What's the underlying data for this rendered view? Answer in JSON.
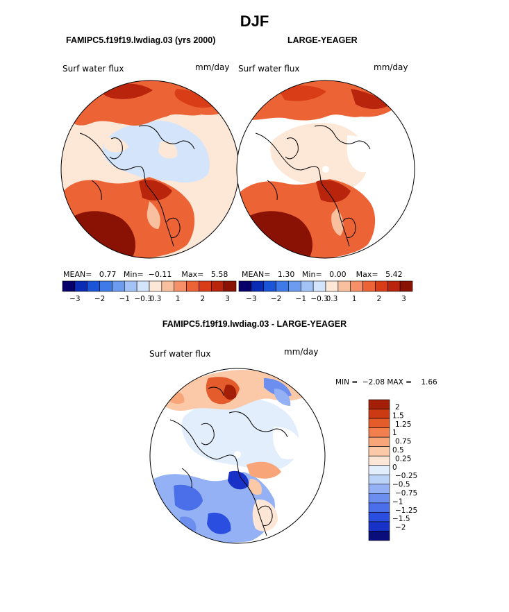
{
  "page": {
    "title": "DJF"
  },
  "panels": [
    {
      "case_title": "FAMIPC5.f19f19.lwdiag.03 (yrs 2000)",
      "variable": "Surf water flux",
      "units": "mm/day",
      "stats": {
        "mean_label": "MEAN=",
        "mean": "0.77",
        "min_label": "Min=",
        "min": "−0.11",
        "max_label": "Max=",
        "max": "5.58"
      }
    },
    {
      "case_title": "LARGE-YEAGER",
      "variable": "Surf water flux",
      "units": "mm/day",
      "stats": {
        "mean_label": "MEAN=",
        "mean": "1.30",
        "min_label": "Min=",
        "min": "0.00",
        "max_label": "Max=",
        "max": "5.42"
      }
    },
    {
      "case_title": "FAMIPC5.f19f19.lwdiag.03 - LARGE-YEAGER",
      "variable": "Surf water flux",
      "units": "mm/day",
      "stats": {
        "min_label": "MIN =",
        "min": "−2.08",
        "max_label": "MAX =",
        "max": "1.66"
      }
    }
  ],
  "colors": {
    "abs_scale": [
      "#08006a",
      "#0a2bb4",
      "#1a55d8",
      "#3f7be8",
      "#6d9bf0",
      "#a3c2f6",
      "#d4e5fb",
      "#fde8d8",
      "#f9c0a0",
      "#f59068",
      "#ec6335",
      "#d93d18",
      "#b8240c",
      "#8a1204"
    ],
    "diff_scale": [
      "#0a0e7a",
      "#1832c8",
      "#2a4fe0",
      "#4a6fe8",
      "#6c8fef",
      "#93b1f4",
      "#bcd3f8",
      "#e2eefc",
      "#fde6d6",
      "#fbc9a8",
      "#f8a57a",
      "#f27f4e",
      "#e45b2c",
      "#cc3a14",
      "#a41f08"
    ]
  },
  "chart_data": [
    {
      "type": "heatmap",
      "title": "Surf water flux",
      "units": "mm/day",
      "projection": "polar stereographic (north pole)",
      "colorbar": {
        "tick_labels": [
          "−3",
          "−2",
          "−1",
          "−0.3",
          "0.3",
          "1",
          "2",
          "3"
        ]
      },
      "summary": {
        "mean": 0.77,
        "min": -0.11,
        "max": 5.58
      }
    },
    {
      "type": "heatmap",
      "title": "Surf water flux",
      "units": "mm/day",
      "projection": "polar stereographic (north pole)",
      "colorbar": {
        "tick_labels": [
          "−3",
          "−2",
          "−1",
          "−0.3",
          "0.3",
          "1",
          "2",
          "3"
        ]
      },
      "summary": {
        "mean": 1.3,
        "min": 0.0,
        "max": 5.42
      }
    },
    {
      "type": "heatmap",
      "title": "Surf water flux",
      "units": "mm/day",
      "projection": "polar stereographic (north pole)",
      "colorbar": {
        "tick_labels": [
          "2",
          "1.5",
          "1.25",
          "1",
          "0.75",
          "0.5",
          "0.25",
          "0",
          "−0.25",
          "−0.5",
          "−0.75",
          "−1",
          "−1.25",
          "−1.5",
          "−2"
        ]
      },
      "summary": {
        "min": -2.08,
        "max": 1.66
      }
    }
  ]
}
